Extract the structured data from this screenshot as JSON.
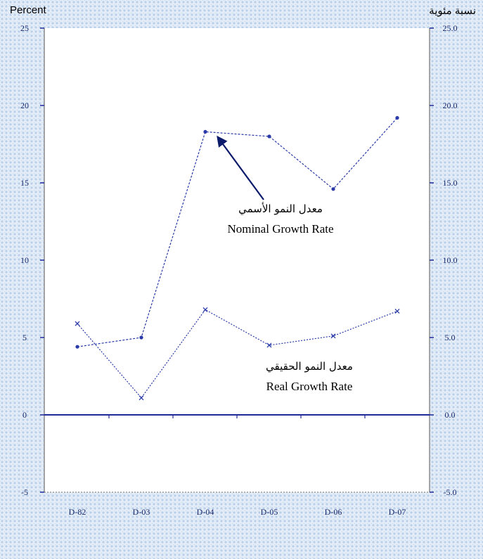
{
  "header": {
    "left_unit_label": "Percent",
    "right_unit_label": "نسبة مئوية"
  },
  "colors": {
    "plot_background": "#ffffff",
    "series_line": "#2a3aa8",
    "zero_line": "#1f2a9a",
    "arrow": "#0b1a6b",
    "frame": "#8a8a8a"
  },
  "chart_data": {
    "type": "line",
    "categories": [
      "D-82",
      "D-03",
      "D-04",
      "D-05",
      "D-06",
      "D-07"
    ],
    "ylim": [
      -5,
      25
    ],
    "left_ticks": [
      "25",
      "20",
      "15",
      "10",
      "5",
      "0",
      "-5"
    ],
    "right_ticks": [
      "25.0",
      "20.0",
      "15.0",
      "10.0",
      "5.0",
      "0.0",
      "-5.0"
    ],
    "tick_values": [
      25,
      20,
      15,
      10,
      5,
      0,
      -5
    ],
    "grid": false,
    "series": [
      {
        "name": "Nominal Growth Rate",
        "name_ar": "معدل النمو الأسمي",
        "marker": "dot",
        "values": [
          4.4,
          5.0,
          18.3,
          18.0,
          14.6,
          19.2
        ]
      },
      {
        "name": "Real Growth Rate",
        "name_ar": "معدل النمو الحقيقي",
        "marker": "x",
        "values": [
          5.9,
          1.1,
          6.8,
          4.5,
          5.1,
          6.7
        ]
      }
    ],
    "annotations": [
      {
        "series_index": 0,
        "text_ar": "معدل النمو الأسمي",
        "text_en": "Nominal Growth Rate",
        "arrow_to_index": 2
      },
      {
        "series_index": 1,
        "text_ar": "معدل النمو الحقيقي",
        "text_en": "Real Growth Rate"
      }
    ]
  }
}
